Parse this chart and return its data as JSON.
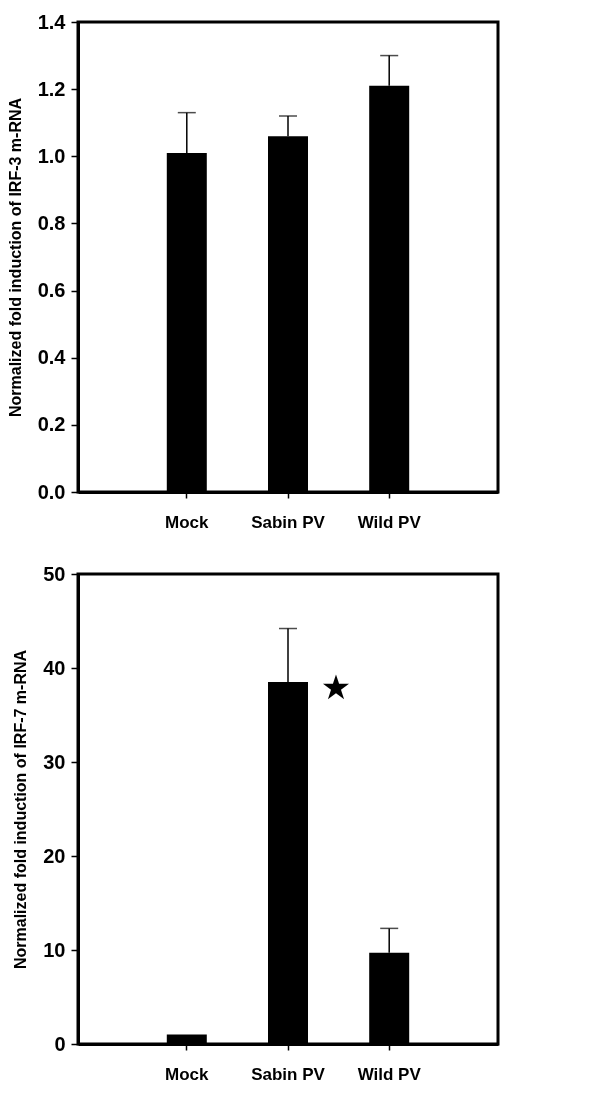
{
  "chart_data": [
    {
      "type": "bar",
      "ylabel": "Normalized fold induction of IRF-3 m-RNA",
      "categories": [
        "Mock",
        "Sabin PV",
        "Wild PV"
      ],
      "values": [
        1.01,
        1.06,
        1.21
      ],
      "color": "#000000",
      "errors": [
        [
          1.01,
          1.13
        ],
        [
          1.06,
          1.12
        ],
        [
          1.21,
          1.3
        ]
      ],
      "ylim": [
        0,
        1.4
      ],
      "yticks": [
        {
          "value": 0,
          "label": "0.0"
        },
        0.2,
        0.4,
        0.6,
        0.8,
        {
          "value": 1,
          "label": "1.0"
        },
        1.2,
        1.4
      ],
      "grid": false
    },
    {
      "type": "bar",
      "ylabel": "Normalized fold induction of IRF-7 m-RNA",
      "categories": [
        "Mock",
        "Sabin PV",
        "Wild PV"
      ],
      "values": [
        1.0,
        38.5,
        9.7
      ],
      "color": "#000000",
      "errors": [
        null,
        [
          38.5,
          44.2
        ],
        [
          9.7,
          12.3
        ]
      ],
      "ylim": [
        0,
        50
      ],
      "yticks": [
        0,
        10,
        20,
        30,
        40,
        50
      ],
      "grid": false,
      "annotations": [
        "★"
      ]
    }
  ]
}
